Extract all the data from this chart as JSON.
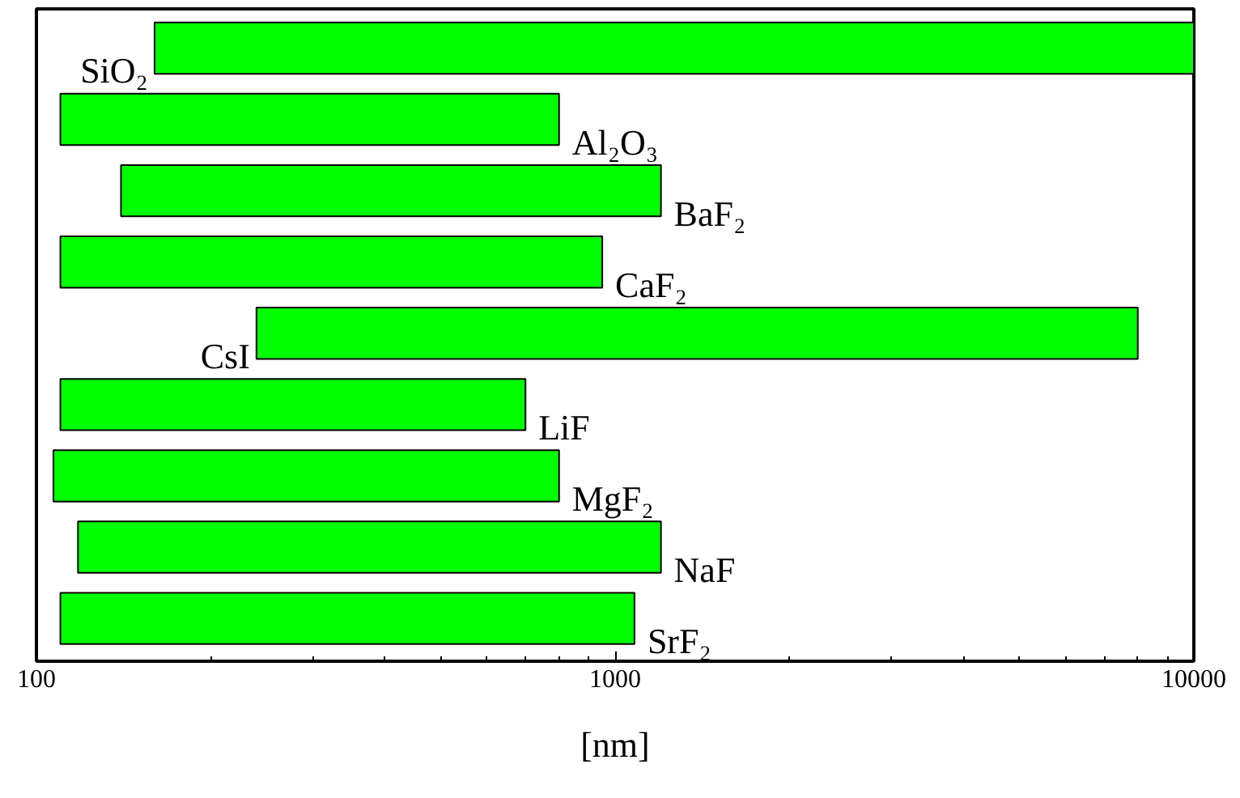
{
  "chart_data": {
    "type": "bar",
    "orientation": "horizontal",
    "xlabel": "[nm]",
    "categories": [
      "SiO₂",
      "Al₂O₃",
      "BaF₂",
      "CaF₂",
      "CsI",
      "LiF",
      "MgF₂",
      "NaF",
      "SrF₂"
    ],
    "base": [
      160,
      110,
      140,
      110,
      240,
      110,
      107,
      118,
      110
    ],
    "values": [
      9840,
      690,
      1060,
      840,
      7760,
      590,
      693,
      1082,
      970
    ],
    "color": "#00ff00",
    "log": "x",
    "xlim": [
      100,
      10000
    ],
    "xticks": [
      100,
      1000,
      10000
    ],
    "grid": false
  }
}
